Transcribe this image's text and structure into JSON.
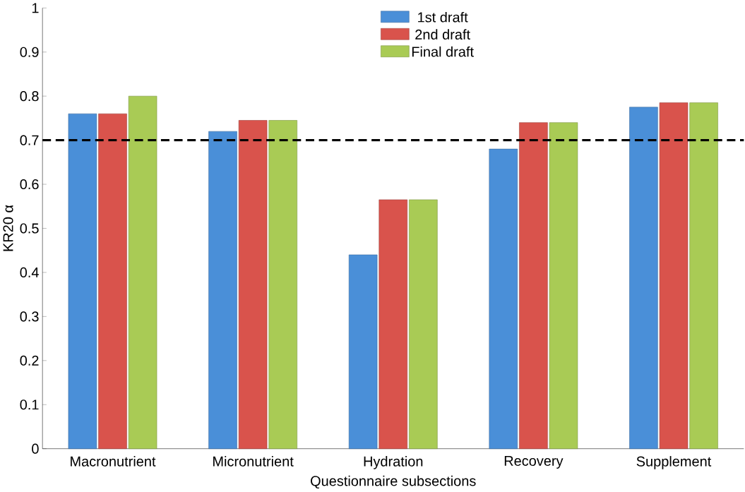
{
  "chart_data": {
    "type": "bar",
    "xlabel": "Questionnaire subsections",
    "ylabel": "KR20 α",
    "categories": [
      "Macronutrient",
      "Micronutrient",
      "Hydration",
      "Recovery",
      "Supplement"
    ],
    "series": [
      {
        "name": "1st draft",
        "color": "#4a8fd8",
        "values": [
          0.76,
          0.72,
          0.44,
          0.68,
          0.775
        ]
      },
      {
        "name": "2nd draft",
        "color": "#d9534c",
        "values": [
          0.76,
          0.745,
          0.565,
          0.74,
          0.785
        ]
      },
      {
        "name": "Final draft",
        "color": "#a9cb55",
        "values": [
          0.8,
          0.745,
          0.565,
          0.74,
          0.785
        ]
      }
    ],
    "ylim": [
      0,
      1
    ],
    "yticks": [
      0,
      0.1,
      0.2,
      0.3,
      0.4,
      0.5,
      0.6,
      0.7,
      0.8,
      0.9,
      1
    ],
    "ref_lines": [
      {
        "axis": "y",
        "value": 0.7,
        "color": "#000000",
        "line_style": "dashed"
      }
    ],
    "legend": "top",
    "grid": false
  }
}
